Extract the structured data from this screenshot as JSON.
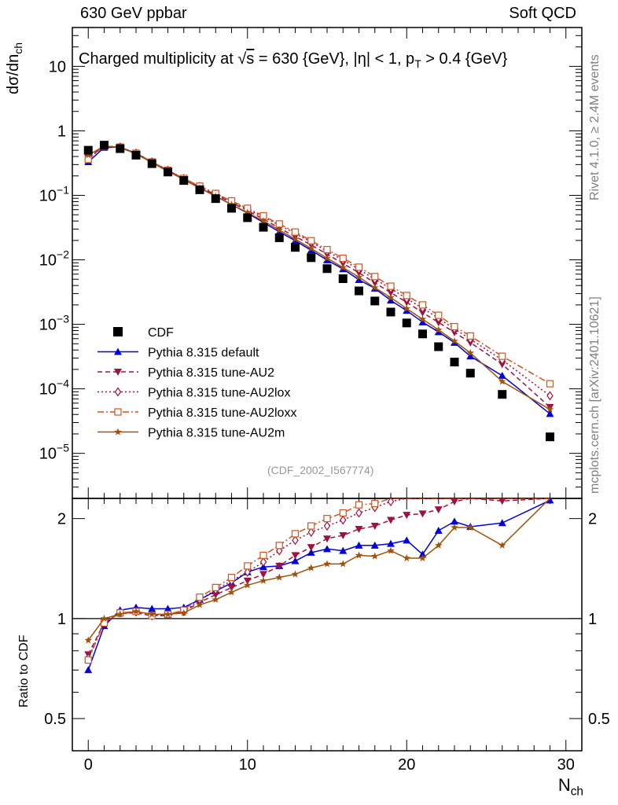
{
  "header": {
    "left": "630 GeV ppbar",
    "right": "Soft QCD"
  },
  "side_labels": {
    "rivet": "Rivet 4.1.0, ≥ 2.4M events",
    "mcplots": "mcplots.cern.ch [arXiv:2401.10621]"
  },
  "analysis_tag": "(CDF_2002_I567774)",
  "chart_data": {
    "type": "scatter",
    "title": "Charged multiplicity at √s = 630 {GeV}, |η| < 1, p_T > 0.4 {GeV}",
    "title_parts": {
      "pre": "Charged multiplicity at ",
      "sqrt_s": "s",
      "mid": " = 630 {GeV}, |η| < 1, p",
      "sub_T": "T",
      "post": " > 0.4 {GeV}"
    },
    "xlabel": "N_ch",
    "ylabel": "dσ/dn_ch",
    "ylabel_ratio": "Ratio to CDF",
    "xlim": [
      -1,
      31
    ],
    "ylim": [
      2e-06,
      40
    ],
    "ratio_ylim": [
      0.4,
      2.3
    ],
    "x_ticks": [
      0,
      10,
      20,
      30
    ],
    "y_ticks": [
      {
        "v": 10,
        "label": "10"
      },
      {
        "v": 1,
        "label": "1"
      },
      {
        "v": 0.1,
        "label": "10",
        "exp": "−1"
      },
      {
        "v": 0.01,
        "label": "10",
        "exp": "−2"
      },
      {
        "v": 0.001,
        "label": "10",
        "exp": "−3"
      },
      {
        "v": 0.0001,
        "label": "10",
        "exp": "−4"
      },
      {
        "v": 1e-05,
        "label": "10",
        "exp": "−5"
      }
    ],
    "ratio_ticks": [
      {
        "v": 0.5,
        "label": "0.5"
      },
      {
        "v": 1,
        "label": "1"
      },
      {
        "v": 2,
        "label": "2"
      }
    ],
    "data": {
      "name": "CDF",
      "x": [
        0,
        1,
        2,
        3,
        4,
        5,
        6,
        7,
        8,
        9,
        10,
        11,
        12,
        13,
        14,
        15,
        16,
        17,
        18,
        19,
        20,
        21,
        22,
        23,
        24,
        26,
        29
      ],
      "y": [
        0.5,
        0.6,
        0.53,
        0.42,
        0.31,
        0.23,
        0.17,
        0.122,
        0.089,
        0.063,
        0.045,
        0.032,
        0.022,
        0.0156,
        0.0108,
        0.0073,
        0.0051,
        0.0033,
        0.0023,
        0.00155,
        0.00105,
        0.00071,
        0.00045,
        0.00026,
        0.000175,
        8.2e-05,
        1.8e-05
      ]
    },
    "series": [
      {
        "name": "Pythia 8.315 default",
        "color": "#0000dd",
        "marker": "triangle-up",
        "dash": "",
        "x": [
          0,
          1,
          2,
          3,
          4,
          5,
          6,
          7,
          8,
          9,
          10,
          11,
          12,
          13,
          14,
          15,
          16,
          17,
          18,
          19,
          20,
          21,
          22,
          23,
          24,
          26,
          29
        ],
        "y": [
          0.33,
          0.55,
          0.56,
          0.45,
          0.33,
          0.245,
          0.175,
          0.13,
          0.097,
          0.072,
          0.053,
          0.038,
          0.0272,
          0.0198,
          0.0141,
          0.0099,
          0.0072,
          0.0049,
          0.0036,
          0.00235,
          0.00163,
          0.00108,
          0.00076,
          0.00052,
          0.00032,
          0.00016,
          4.1e-05
        ],
        "ratio": [
          0.7,
          0.95,
          1.06,
          1.08,
          1.07,
          1.07,
          1.08,
          1.14,
          1.21,
          1.28,
          1.38,
          1.43,
          1.44,
          1.49,
          1.58,
          1.62,
          1.6,
          1.66,
          1.66,
          1.68,
          1.72,
          1.56,
          1.84,
          1.96,
          1.89,
          1.94,
          2.27
        ]
      },
      {
        "name": "Pythia 8.315 tune-AU2",
        "color": "#a01040",
        "marker": "triangle-down",
        "dash": "6,4",
        "x": [
          0,
          1,
          2,
          3,
          4,
          5,
          6,
          7,
          8,
          9,
          10,
          11,
          12,
          13,
          14,
          15,
          16,
          17,
          18,
          19,
          20,
          21,
          22,
          23,
          24,
          26,
          29
        ],
        "y": [
          0.38,
          0.58,
          0.55,
          0.44,
          0.33,
          0.24,
          0.18,
          0.135,
          0.102,
          0.077,
          0.058,
          0.043,
          0.031,
          0.023,
          0.017,
          0.0122,
          0.0088,
          0.0063,
          0.0044,
          0.0031,
          0.0022,
          0.00152,
          0.00107,
          0.00075,
          0.00052,
          0.00024,
          5.2e-05
        ],
        "ratio": [
          0.78,
          0.97,
          1.04,
          1.04,
          1.02,
          1.02,
          1.05,
          1.12,
          1.18,
          1.24,
          1.3,
          1.36,
          1.44,
          1.55,
          1.64,
          1.74,
          1.78,
          1.86,
          1.9,
          1.98,
          2.05,
          2.07,
          2.13,
          2.25,
          2.3,
          2.26,
          2.3
        ]
      },
      {
        "name": "Pythia 8.315 tune-AU2lox",
        "color": "#a01040",
        "marker": "diamond-open",
        "dash": "2,3",
        "x": [
          0,
          1,
          2,
          3,
          4,
          5,
          6,
          7,
          8,
          9,
          10,
          11,
          12,
          13,
          14,
          15,
          16,
          17,
          18,
          19,
          20,
          21,
          22,
          23,
          24,
          26,
          29
        ],
        "y": [
          0.37,
          0.58,
          0.56,
          0.45,
          0.33,
          0.245,
          0.182,
          0.137,
          0.105,
          0.08,
          0.061,
          0.046,
          0.0345,
          0.0257,
          0.0188,
          0.0136,
          0.0099,
          0.0071,
          0.005,
          0.0036,
          0.0025,
          0.00178,
          0.00124,
          0.00085,
          0.00059,
          0.00028,
          7.8e-05
        ],
        "ratio": [
          0.76,
          0.97,
          1.04,
          1.05,
          1.02,
          1.03,
          1.05,
          1.14,
          1.22,
          1.3,
          1.38,
          1.48,
          1.6,
          1.72,
          1.82,
          1.9,
          1.98,
          2.08,
          2.16,
          2.25,
          2.3,
          2.3,
          2.3,
          2.3,
          2.3,
          2.3,
          2.3
        ]
      },
      {
        "name": "Pythia 8.315 tune-AU2loxx",
        "color": "#cc5522",
        "marker": "square-open",
        "dash": "8,3,2,3",
        "x": [
          0,
          1,
          2,
          3,
          4,
          5,
          6,
          7,
          8,
          9,
          10,
          11,
          12,
          13,
          14,
          15,
          16,
          17,
          18,
          19,
          20,
          21,
          22,
          23,
          24,
          26,
          29
        ],
        "y": [
          0.36,
          0.58,
          0.56,
          0.45,
          0.33,
          0.245,
          0.183,
          0.139,
          0.107,
          0.082,
          0.063,
          0.048,
          0.036,
          0.027,
          0.0198,
          0.0144,
          0.0106,
          0.0077,
          0.0055,
          0.0039,
          0.0028,
          0.002,
          0.00138,
          0.00092,
          0.00066,
          0.00032,
          0.00012
        ],
        "ratio": [
          0.75,
          0.97,
          1.04,
          1.05,
          1.02,
          1.03,
          1.06,
          1.16,
          1.24,
          1.33,
          1.44,
          1.55,
          1.66,
          1.8,
          1.9,
          2.0,
          2.08,
          2.2,
          2.22,
          2.3,
          2.3,
          2.3,
          2.3,
          2.3,
          2.3,
          2.3,
          2.3
        ]
      },
      {
        "name": "Pythia 8.315 tune-AU2m",
        "color": "#a0520a",
        "marker": "star",
        "dash": "",
        "x": [
          0,
          1,
          2,
          3,
          4,
          5,
          6,
          7,
          8,
          9,
          10,
          11,
          12,
          13,
          14,
          15,
          16,
          17,
          18,
          19,
          20,
          21,
          22,
          23,
          24,
          26,
          29
        ],
        "y": [
          0.42,
          0.58,
          0.55,
          0.44,
          0.32,
          0.235,
          0.176,
          0.13,
          0.097,
          0.072,
          0.054,
          0.04,
          0.029,
          0.021,
          0.015,
          0.0106,
          0.0076,
          0.0054,
          0.0037,
          0.0026,
          0.00175,
          0.0012,
          0.00082,
          0.00055,
          0.00036,
          0.00013,
          4.8e-05
        ],
        "ratio": [
          0.86,
          1.0,
          1.03,
          1.05,
          1.03,
          1.03,
          1.04,
          1.1,
          1.14,
          1.2,
          1.26,
          1.3,
          1.33,
          1.36,
          1.42,
          1.46,
          1.46,
          1.55,
          1.54,
          1.6,
          1.52,
          1.52,
          1.66,
          1.88,
          1.88,
          1.66,
          2.3
        ]
      }
    ],
    "legend_location": "lower-left"
  }
}
